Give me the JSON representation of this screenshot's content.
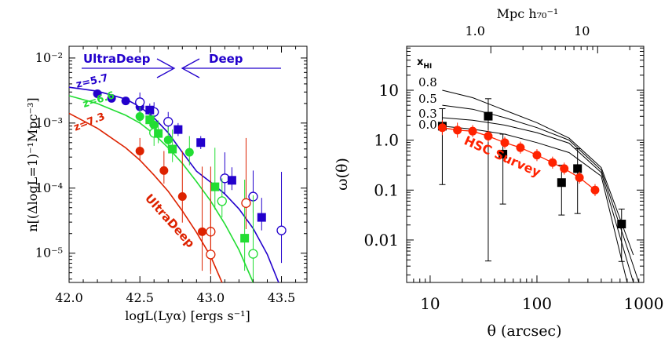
{
  "chart_data": [
    {
      "type": "scatter",
      "panel": "left",
      "xlabel": "logL(Lyα) [ergs s⁻¹]",
      "ylabel": "n[(ΔlogL=1)⁻¹Mpc⁻³]",
      "xlim": [
        42.0,
        43.68
      ],
      "ylim_log10": [
        -5.45,
        -1.82
      ],
      "x_ticks": [
        "42.0",
        "42.5",
        "43.0",
        "43.5"
      ],
      "y_ticks": [
        "10⁻⁵",
        "10⁻⁴",
        "10⁻³",
        "10⁻²"
      ],
      "annotations": {
        "ultradeep_top": "UltraDeep",
        "deep_top": "Deep",
        "ultradeep_diag": "UltraDeep",
        "z57": "z=5.7",
        "z66": "z=6.6",
        "z73": "z=7.3"
      },
      "colors": {
        "z57": "#2200cc",
        "z66": "#22dd33",
        "z73": "#dd2200"
      },
      "series": [
        {
          "name": "z=5.7",
          "curve": [
            [
              42.0,
              -2.45
            ],
            [
              42.2,
              -2.51
            ],
            [
              42.4,
              -2.63
            ],
            [
              42.5,
              -2.75
            ],
            [
              42.6,
              -2.92
            ],
            [
              42.7,
              -3.15
            ],
            [
              42.8,
              -3.45
            ],
            [
              42.9,
              -3.74
            ],
            [
              43.0,
              -3.91
            ],
            [
              43.1,
              -4.09
            ],
            [
              43.2,
              -4.32
            ],
            [
              43.3,
              -4.62
            ],
            [
              43.4,
              -5.02
            ],
            [
              43.48,
              -5.45
            ]
          ],
          "filled_circles": [
            [
              42.2,
              -2.55,
              0.05,
              0.05
            ],
            [
              42.3,
              -2.62,
              0.05,
              0.05
            ],
            [
              42.4,
              -2.66,
              0.05,
              0.05
            ],
            [
              42.5,
              -2.75,
              0.1,
              0.1
            ]
          ],
          "open_circles": [
            [
              42.5,
              -2.68,
              0.15,
              0.15
            ],
            [
              42.6,
              -2.83,
              0.1,
              0.15
            ],
            [
              42.7,
              -2.98,
              0.15,
              0.15
            ],
            [
              43.1,
              -3.85,
              0.25,
              0.4
            ],
            [
              43.3,
              -4.13,
              0.25,
              0.4
            ],
            [
              43.5,
              -4.65,
              0.5,
              0.9
            ]
          ],
          "filled_squares": [
            [
              42.57,
              -2.8,
              0.1,
              0.1
            ],
            [
              42.77,
              -3.1,
              0.1,
              0.1
            ],
            [
              42.93,
              -3.3,
              0.1,
              0.1
            ],
            [
              43.15,
              -3.88,
              0.15,
              0.2
            ],
            [
              43.36,
              -4.45,
              0.2,
              0.3
            ]
          ]
        },
        {
          "name": "z=6.6",
          "curve": [
            [
              42.0,
              -2.58
            ],
            [
              42.2,
              -2.7
            ],
            [
              42.4,
              -2.88
            ],
            [
              42.5,
              -3.0
            ],
            [
              42.6,
              -3.17
            ],
            [
              42.7,
              -3.38
            ],
            [
              42.8,
              -3.62
            ],
            [
              42.9,
              -3.9
            ],
            [
              43.0,
              -4.2
            ],
            [
              43.1,
              -4.55
            ],
            [
              43.2,
              -4.95
            ],
            [
              43.3,
              -5.45
            ]
          ],
          "filled_circles": [
            [
              42.5,
              -2.9,
              0.1,
              0.15
            ],
            [
              42.6,
              -3.03,
              0.15,
              0.15
            ],
            [
              42.7,
              -3.26,
              0.15,
              0.2
            ],
            [
              42.85,
              -3.45,
              0.2,
              0.25
            ]
          ],
          "open_circles": [
            [
              42.6,
              -3.15,
              0.2,
              0.2
            ],
            [
              43.08,
              -4.2,
              0.25,
              0.35
            ],
            [
              43.3,
              -5.01,
              0.45,
              0.9
            ]
          ],
          "filled_squares": [
            [
              42.57,
              -2.95,
              0.1,
              0.1
            ],
            [
              42.63,
              -3.16,
              0.15,
              0.2
            ],
            [
              42.73,
              -3.4,
              0.2,
              0.3
            ],
            [
              43.03,
              -3.98,
              0.35,
              0.6
            ],
            [
              43.24,
              -4.77,
              0.5,
              0.9
            ]
          ]
        },
        {
          "name": "z=7.3",
          "curve": [
            [
              42.0,
              -2.85
            ],
            [
              42.2,
              -3.08
            ],
            [
              42.4,
              -3.38
            ],
            [
              42.5,
              -3.57
            ],
            [
              42.6,
              -3.8
            ],
            [
              42.7,
              -4.05
            ],
            [
              42.8,
              -4.35
            ],
            [
              42.9,
              -4.68
            ],
            [
              43.0,
              -5.05
            ],
            [
              43.08,
              -5.45
            ]
          ],
          "filled_circles": [
            [
              42.5,
              -3.43,
              0.15,
              0.2
            ],
            [
              42.67,
              -3.73,
              0.2,
              0.3
            ],
            [
              42.8,
              -4.13,
              0.4,
              0.7
            ],
            [
              42.94,
              -4.67,
              0.6,
              1.0
            ]
          ],
          "open_circles": [
            [
              43.0,
              -4.67,
              0.6,
              1.0
            ],
            [
              43.0,
              -5.02,
              0.3,
              0.8
            ],
            [
              43.25,
              -4.23,
              0.4,
              1.0
            ]
          ],
          "filled_squares": []
        }
      ]
    },
    {
      "type": "scatter",
      "panel": "right",
      "xlabel": "θ (arcsec)",
      "ylabel": "ω(θ)",
      "top_xlabel": "Mpc h₇₀⁻¹",
      "xlim_log10": [
        0.78,
        3.0
      ],
      "ylim_log10": [
        -2.85,
        1.88
      ],
      "x_ticks": [
        "10",
        "100",
        "1000"
      ],
      "y_ticks": [
        "0.01",
        "0.1",
        "1.0",
        "10"
      ],
      "top_x_ticks": [
        "1.0",
        "10"
      ],
      "legend_title": "x_HI",
      "model_labels": [
        "0.8",
        "0.5",
        "0.3",
        "0.0"
      ],
      "annotation": "HSC Survey",
      "colors": {
        "hsc": "#ff2200"
      },
      "model_curves": [
        [
          [
            13,
            1.0
          ],
          [
            25,
            0.85
          ],
          [
            50,
            0.6
          ],
          [
            100,
            0.35
          ],
          [
            200,
            0.04
          ],
          [
            400,
            -0.55
          ],
          [
            800,
            -2.3
          ]
        ],
        [
          [
            13,
            0.7
          ],
          [
            25,
            0.62
          ],
          [
            50,
            0.45
          ],
          [
            100,
            0.25
          ],
          [
            200,
            0.0
          ],
          [
            400,
            -0.6
          ],
          [
            900,
            -2.85
          ]
        ],
        [
          [
            13,
            0.45
          ],
          [
            25,
            0.4
          ],
          [
            50,
            0.3
          ],
          [
            100,
            0.15
          ],
          [
            200,
            -0.06
          ],
          [
            400,
            -0.65
          ],
          [
            800,
            -2.85
          ]
        ],
        [
          [
            13,
            0.28
          ],
          [
            25,
            0.22
          ],
          [
            50,
            0.12
          ],
          [
            100,
            -0.05
          ],
          [
            200,
            -0.25
          ],
          [
            400,
            -0.72
          ],
          [
            700,
            -2.85
          ]
        ]
      ],
      "hsc_points": [
        [
          13,
          0.25,
          0.15,
          0.15
        ],
        [
          18,
          0.2,
          0.15,
          0.15
        ],
        [
          25,
          0.18,
          0.12,
          0.12
        ],
        [
          35,
          0.08,
          0.12,
          0.12
        ],
        [
          50,
          -0.05,
          0.12,
          0.12
        ],
        [
          70,
          -0.15,
          0.12,
          0.12
        ],
        [
          100,
          -0.3,
          0.12,
          0.12
        ],
        [
          140,
          -0.45,
          0.12,
          0.12
        ],
        [
          180,
          -0.57,
          0.12,
          0.12
        ],
        [
          250,
          -0.75,
          0.12,
          0.12
        ],
        [
          350,
          -1.0,
          0.12,
          0.12
        ]
      ],
      "black_squares": [
        [
          13,
          0.28,
          0.35,
          1.17
        ],
        [
          35,
          0.48,
          0.35,
          2.9
        ],
        [
          48,
          -0.28,
          0.4,
          1.0
        ],
        [
          170,
          -0.85,
          0.35,
          0.65
        ],
        [
          240,
          -0.57,
          0.4,
          0.9
        ],
        [
          620,
          -1.68,
          0.3,
          0.75
        ]
      ]
    }
  ]
}
